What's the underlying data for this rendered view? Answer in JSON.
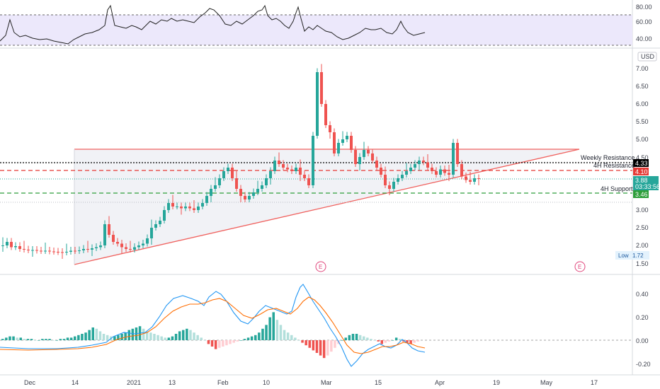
{
  "price_axis": {
    "currency": "USD",
    "ticks": [
      "7.00",
      "6.50",
      "6.00",
      "5.50",
      "5.00",
      "4.50",
      "4.00",
      "3.50",
      "3.00",
      "2.50",
      "2.00",
      "1.50"
    ]
  },
  "rsi_axis": {
    "ticks": [
      "80.00",
      "60.00",
      "40.00"
    ]
  },
  "macd_axis": {
    "ticks": [
      "0.40",
      "0.20",
      "0.00",
      "-0.20"
    ]
  },
  "time_axis": {
    "labels": [
      "Dec",
      "14",
      "2021",
      "13",
      "Feb",
      "10",
      "Mar",
      "15",
      "Apr",
      "19",
      "May",
      "17"
    ]
  },
  "levels": {
    "weekly_resistance": {
      "label": "Weekly Resistance",
      "value": "4.33"
    },
    "h4_resistance": {
      "label": "4H Resistance",
      "value": "4.10"
    },
    "last_price": {
      "value": "3.88",
      "countdown": "03:33:56"
    },
    "h4_support": {
      "label": "4H Support",
      "value": "3.46"
    },
    "low": {
      "label": "Low",
      "value": "1.72"
    }
  },
  "earnings_marker": "E",
  "colors": {
    "bull": "#26a69a",
    "bear": "#ef5350",
    "rsi_band": "#ece8fb",
    "macd": "#2196f3",
    "signal": "#ff6d00",
    "triangle": "#f0625f"
  },
  "chart_data": {
    "type": "candlestick",
    "ohlc_approx": [
      {
        "date": "Dec",
        "close": 2.0
      },
      {
        "date": "14",
        "close": 1.8
      },
      {
        "date": "2021",
        "close": 2.1
      },
      {
        "date": "13",
        "close": 3.1
      },
      {
        "date": "Feb",
        "close": 3.7
      },
      {
        "date": "10",
        "close": 4.2
      },
      {
        "date": "Feb-22",
        "high": 7.3,
        "close": 6.0
      },
      {
        "date": "Mar",
        "close": 3.9
      },
      {
        "date": "15",
        "close": 4.4
      },
      {
        "date": "Mar-20",
        "high": 5.3,
        "close": 4.0
      },
      {
        "date": "Mar-25",
        "close": 3.88
      }
    ],
    "rsi_levels": [
      70,
      30
    ],
    "macd_range": [
      -0.25,
      0.5
    ],
    "ylim": [
      1.4,
      7.5
    ]
  }
}
